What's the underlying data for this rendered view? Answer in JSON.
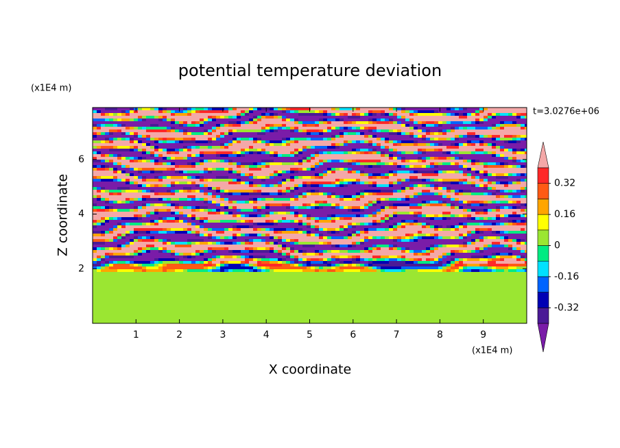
{
  "chart_data": {
    "type": "contour",
    "title": "potential temperature deviation",
    "x_label": "X coordinate",
    "y_label": "Z coordinate",
    "x_unit": "(x1E4 m)",
    "y_unit": "(x1E4 m)",
    "time_label": "t=3.0276e+06",
    "xlim": [
      0,
      10
    ],
    "xticks": [
      1,
      2,
      3,
      4,
      5,
      6,
      7,
      8,
      9
    ],
    "ylim": [
      0,
      7.9
    ],
    "yticks": [
      2,
      4,
      6
    ],
    "colorbar": {
      "levels": [
        -0.4,
        -0.32,
        -0.24,
        -0.16,
        -0.08,
        0,
        0.08,
        0.16,
        0.24,
        0.32,
        0.4
      ],
      "colors": [
        "#7a1ca8",
        "#4b1a96",
        "#0000b4",
        "#0064ff",
        "#00e1ff",
        "#00eb82",
        "#9be632",
        "#ffff00",
        "#ffa500",
        "#ff5a14",
        "#ff2828",
        "#f4a8a8"
      ],
      "ticks": [
        -0.32,
        -0.16,
        0,
        0.16,
        0.32
      ]
    }
  }
}
